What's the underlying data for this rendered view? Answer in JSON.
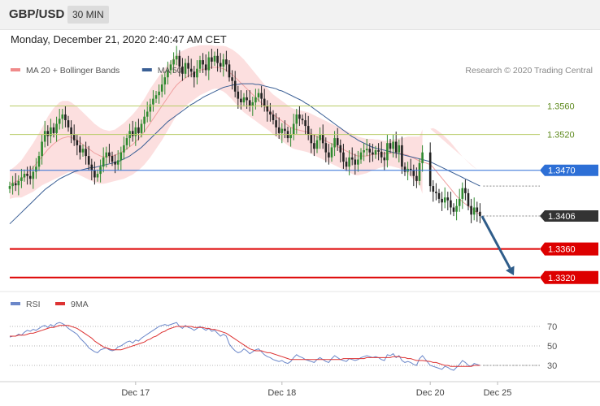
{
  "header": {
    "symbol": "GBP/USD",
    "timeframe": "30 MIN",
    "timestamp": "Monday, December 21, 2020 2:40:47 AM CET"
  },
  "chart_data": [
    {
      "type": "candlestick",
      "legend": [
        {
          "label": "MA 20 + Bollinger Bands",
          "color": "#f08a8a"
        },
        {
          "label": "MA 50",
          "color": "#3a5f95"
        }
      ],
      "credit": "Research © 2020 Trading Central",
      "ylim": [
        1.3305,
        1.364
      ],
      "x_ticks": [
        {
          "label": "Dec 17",
          "index": 43
        },
        {
          "label": "Dec 18",
          "index": 93
        },
        {
          "label": "Dec 20",
          "index": 142
        },
        {
          "label": "Dec 25",
          "index": 165
        }
      ],
      "levels": [
        {
          "value": 1.356,
          "label": "1.3560",
          "style": "resistance"
        },
        {
          "value": 1.352,
          "label": "1.3520",
          "style": "resistance"
        },
        {
          "value": 1.347,
          "label": "1.3470",
          "style": "pivot",
          "color": "#2d6fd6"
        },
        {
          "value": 1.3406,
          "label": "1.3406",
          "style": "last",
          "color": "#333333"
        },
        {
          "value": 1.336,
          "label": "1.3360",
          "style": "support",
          "color": "#dd0000"
        },
        {
          "value": 1.332,
          "label": "1.3320",
          "style": "support",
          "color": "#dd0000"
        }
      ],
      "arrow": {
        "from": [
          158,
          1.3406
        ],
        "to": [
          170,
          1.3323
        ],
        "color": "#2f5d8a"
      },
      "gap_after_index": 141,
      "close": [
        1.3448,
        1.3452,
        1.3449,
        1.3455,
        1.346,
        1.3465,
        1.3462,
        1.3458,
        1.3468,
        1.3475,
        1.349,
        1.351,
        1.3525,
        1.3518,
        1.353,
        1.3522,
        1.3535,
        1.3542,
        1.3548,
        1.354,
        1.353,
        1.352,
        1.3512,
        1.3505,
        1.3495,
        1.35,
        1.349,
        1.3478,
        1.347,
        1.346,
        1.3465,
        1.3475,
        1.3488,
        1.3495,
        1.349,
        1.3482,
        1.3478,
        1.3484,
        1.3495,
        1.3505,
        1.3515,
        1.3525,
        1.3518,
        1.353,
        1.3522,
        1.3535,
        1.3545,
        1.3552,
        1.3562,
        1.357,
        1.3575,
        1.358,
        1.359,
        1.36,
        1.361,
        1.3618,
        1.3625,
        1.363,
        1.3615,
        1.3605,
        1.362,
        1.3612,
        1.3608,
        1.36,
        1.3612,
        1.3624,
        1.3618,
        1.361,
        1.3628,
        1.3622,
        1.363,
        1.362,
        1.3615,
        1.3625,
        1.3618,
        1.36,
        1.3595,
        1.358,
        1.357,
        1.3565,
        1.3572,
        1.3568,
        1.356,
        1.3565,
        1.3572,
        1.3578,
        1.357,
        1.356,
        1.3552,
        1.3548,
        1.354,
        1.353,
        1.3522,
        1.3528,
        1.3525,
        1.3515,
        1.352,
        1.3535,
        1.3548,
        1.3542,
        1.354,
        1.3532,
        1.352,
        1.3508,
        1.35,
        1.3512,
        1.352,
        1.3508,
        1.3495,
        1.3488,
        1.3502,
        1.3515,
        1.3505,
        1.3495,
        1.3482,
        1.3475,
        1.3488,
        1.3485,
        1.3478,
        1.3485,
        1.3495,
        1.3498,
        1.35,
        1.3495,
        1.3492,
        1.3498,
        1.3496,
        1.3488,
        1.3484,
        1.3508,
        1.35,
        1.351,
        1.3495,
        1.3505,
        1.3475,
        1.3468,
        1.3472,
        1.347,
        1.3462,
        1.3455,
        1.348,
        1.3495,
        1.3448,
        1.344,
        1.3438,
        1.343,
        1.3425,
        1.3432,
        1.3428,
        1.3418,
        1.3412,
        1.342,
        1.343,
        1.3445,
        1.3438,
        1.342,
        1.3408,
        1.3418,
        1.3412,
        1.3406
      ],
      "ma20": [
        1.345,
        1.3452,
        1.3454,
        1.3456,
        1.3458,
        1.3462,
        1.3466,
        1.347,
        1.3474,
        1.3479,
        1.3484,
        1.3489,
        1.3494,
        1.3499,
        1.3503,
        1.3507,
        1.351,
        1.3513,
        1.3515,
        1.3516,
        1.3517,
        1.3516,
        1.3514,
        1.3512,
        1.3509,
        1.3506,
        1.3503,
        1.35,
        1.3497,
        1.3494,
        1.3492,
        1.349,
        1.3489,
        1.3489,
        1.3489,
        1.349,
        1.3491,
        1.3493,
        1.3495,
        1.3497,
        1.35,
        1.3503,
        1.3506,
        1.351,
        1.3514,
        1.3519,
        1.3524,
        1.353,
        1.3536,
        1.3542,
        1.3548,
        1.3554,
        1.356,
        1.3566,
        1.3572,
        1.3578,
        1.3584,
        1.3589,
        1.3593,
        1.3596,
        1.3599,
        1.3602,
        1.3604,
        1.3606,
        1.3608,
        1.361,
        1.3611,
        1.3612,
        1.3613,
        1.3614,
        1.3614,
        1.3614,
        1.3613,
        1.3612,
        1.361,
        1.3607,
        1.3604,
        1.36,
        1.3596,
        1.3592,
        1.3588,
        1.3584,
        1.358,
        1.3576,
        1.3572,
        1.3568,
        1.3564,
        1.356,
        1.3556,
        1.3552,
        1.3548,
        1.3545,
        1.3542,
        1.3539,
        1.3536,
        1.3533,
        1.353,
        1.3528,
        1.3527,
        1.3526,
        1.3525,
        1.3524,
        1.3523,
        1.3521,
        1.3519,
        1.3517,
        1.3515,
        1.3513,
        1.3511,
        1.3509,
        1.3507,
        1.3505,
        1.3503,
        1.3501,
        1.3499,
        1.3497,
        1.3495,
        1.3493,
        1.3491,
        1.349,
        1.349,
        1.349,
        1.349,
        1.3491,
        1.3492,
        1.3492,
        1.3493,
        1.3493,
        1.3493,
        1.3494,
        1.3494,
        1.3494,
        1.3494,
        1.3494,
        1.3493,
        1.3492,
        1.3491,
        1.3489,
        1.3487,
        1.3485,
        1.3483,
        1.3482,
        1.3478,
        1.3474,
        1.3469,
        1.3464,
        1.3459,
        1.3454,
        1.3449,
        1.3444,
        1.3439,
        1.3434,
        1.343,
        1.3426,
        1.3423,
        1.342,
        1.3417,
        1.3414,
        1.3411,
        1.3408
      ],
      "ma50": [
        1.3395,
        1.3399,
        1.3403,
        1.3407,
        1.3411,
        1.3415,
        1.3419,
        1.3423,
        1.3427,
        1.3431,
        1.3435,
        1.3439,
        1.3443,
        1.3446,
        1.3449,
        1.3452,
        1.3455,
        1.3458,
        1.346,
        1.3462,
        1.3464,
        1.3466,
        1.3468,
        1.3469,
        1.347,
        1.3471,
        1.3472,
        1.3473,
        1.3474,
        1.3474,
        1.3475,
        1.3476,
        1.3477,
        1.3478,
        1.3479,
        1.348,
        1.3481,
        1.3482,
        1.3484,
        1.3486,
        1.3488,
        1.349,
        1.3493,
        1.3496,
        1.3499,
        1.3502,
        1.3506,
        1.351,
        1.3514,
        1.3518,
        1.3522,
        1.3526,
        1.353,
        1.3534,
        1.3538,
        1.3541,
        1.3544,
        1.3547,
        1.355,
        1.3553,
        1.3556,
        1.3559,
        1.3562,
        1.3564,
        1.3567,
        1.3569,
        1.3572,
        1.3574,
        1.3576,
        1.3578,
        1.358,
        1.3582,
        1.3584,
        1.3586,
        1.3587,
        1.3588,
        1.3589,
        1.359,
        1.359,
        1.3591,
        1.3591,
        1.3591,
        1.3591,
        1.3591,
        1.359,
        1.359,
        1.3589,
        1.3588,
        1.3587,
        1.3586,
        1.3585,
        1.3584,
        1.3582,
        1.3581,
        1.3579,
        1.3577,
        1.3575,
        1.3573,
        1.3571,
        1.3569,
        1.3567,
        1.3564,
        1.3562,
        1.3559,
        1.3556,
        1.3553,
        1.355,
        1.3547,
        1.3544,
        1.3541,
        1.3538,
        1.3535,
        1.3532,
        1.3529,
        1.3526,
        1.3523,
        1.352,
        1.3517,
        1.3515,
        1.3512,
        1.351,
        1.3508,
        1.3506,
        1.3504,
        1.3502,
        1.3501,
        1.35,
        1.3499,
        1.3498,
        1.3497,
        1.3496,
        1.3495,
        1.3494,
        1.3493,
        1.3492,
        1.3491,
        1.349,
        1.3489,
        1.3488,
        1.3487,
        1.3486,
        1.3485,
        1.3482,
        1.348,
        1.3478,
        1.3476,
        1.3474,
        1.3472,
        1.347,
        1.3468,
        1.3466,
        1.3464,
        1.3462,
        1.346,
        1.3458,
        1.3456,
        1.3454,
        1.3452,
        1.345,
        1.3448
      ],
      "bb_width": [
        0.002,
        0.0021,
        0.0022,
        0.0024,
        0.0026,
        0.0028,
        0.003,
        0.0032,
        0.0034,
        0.0036,
        0.0038,
        0.004,
        0.0043,
        0.0046,
        0.0048,
        0.005,
        0.0051,
        0.0052,
        0.0052,
        0.0051,
        0.005,
        0.0049,
        0.0048,
        0.0047,
        0.0046,
        0.0045,
        0.0044,
        0.0043,
        0.0042,
        0.0041,
        0.004,
        0.0039,
        0.0038,
        0.0037,
        0.0036,
        0.0036,
        0.0036,
        0.0037,
        0.0038,
        0.0039,
        0.004,
        0.0041,
        0.0042,
        0.0043,
        0.0044,
        0.0045,
        0.0046,
        0.0047,
        0.0048,
        0.0048,
        0.0048,
        0.0048,
        0.0048,
        0.0047,
        0.0046,
        0.0045,
        0.0044,
        0.0043,
        0.0042,
        0.0041,
        0.004,
        0.0039,
        0.0038,
        0.0037,
        0.0036,
        0.0035,
        0.0034,
        0.0033,
        0.0032,
        0.0031,
        0.003,
        0.003,
        0.0031,
        0.0032,
        0.0033,
        0.0034,
        0.0035,
        0.0036,
        0.0037,
        0.0037,
        0.0037,
        0.0036,
        0.0035,
        0.0034,
        0.0033,
        0.0032,
        0.0031,
        0.003,
        0.0029,
        0.0028,
        0.0028,
        0.0028,
        0.0028,
        0.0028,
        0.0028,
        0.0028,
        0.0028,
        0.0028,
        0.0028,
        0.0028,
        0.0028,
        0.0028,
        0.0028,
        0.0028,
        0.0028,
        0.0028,
        0.0028,
        0.0028,
        0.0028,
        0.0028,
        0.0028,
        0.0028,
        0.0028,
        0.0028,
        0.0028,
        0.0028,
        0.0028,
        0.0028,
        0.0028,
        0.0027,
        0.0026,
        0.0025,
        0.0024,
        0.0023,
        0.0022,
        0.0021,
        0.002,
        0.0019,
        0.0018,
        0.0018,
        0.0018,
        0.0019,
        0.002,
        0.0021,
        0.0022,
        0.0024,
        0.0026,
        0.0028,
        0.003,
        0.0032,
        0.0034,
        0.0045,
        0.005,
        0.0055,
        0.0058,
        0.006,
        0.0062,
        0.0063,
        0.0064,
        0.0065,
        0.0065,
        0.0065,
        0.0064,
        0.0063,
        0.0062,
        0.0061,
        0.006,
        0.006,
        0.006
      ]
    },
    {
      "type": "line",
      "legend": [
        {
          "label": "RSI",
          "color": "#6b87c9"
        },
        {
          "label": "9MA",
          "color": "#dd3333"
        }
      ],
      "ylim": [
        20,
        80
      ],
      "y_ticks": [
        70,
        50,
        30
      ],
      "series": [
        {
          "name": "RSI",
          "values": [
            59,
            60,
            60,
            62,
            61,
            64,
            66,
            65,
            67,
            66,
            68,
            70,
            71,
            69,
            72,
            70,
            73,
            74,
            73,
            71,
            68,
            66,
            64,
            62,
            58,
            55,
            52,
            48,
            46,
            44,
            43,
            46,
            47,
            48,
            46,
            45,
            46,
            49,
            50,
            52,
            54,
            55,
            53,
            56,
            55,
            58,
            60,
            62,
            64,
            66,
            68,
            70,
            71,
            72,
            71,
            72,
            73,
            74,
            70,
            68,
            71,
            69,
            68,
            66,
            68,
            70,
            68,
            66,
            68,
            65,
            66,
            63,
            60,
            62,
            60,
            52,
            48,
            45,
            43,
            44,
            47,
            45,
            42,
            44,
            46,
            47,
            44,
            41,
            39,
            38,
            36,
            35,
            34,
            35,
            33,
            32,
            34,
            38,
            41,
            39,
            38,
            36,
            35,
            34,
            33,
            36,
            38,
            36,
            34,
            33,
            37,
            40,
            38,
            36,
            35,
            34,
            37,
            36,
            35,
            36,
            38,
            39,
            40,
            39,
            38,
            39,
            38,
            36,
            35,
            41,
            40,
            42,
            38,
            40,
            35,
            33,
            34,
            33,
            31,
            30,
            37,
            40,
            30,
            29,
            28,
            27,
            26,
            29,
            28,
            26,
            25,
            28,
            31,
            35,
            33,
            30,
            29,
            32,
            31,
            30
          ]
        },
        {
          "name": "9MA",
          "values": [
            60,
            60,
            60,
            61,
            61,
            61,
            62,
            63,
            63,
            64,
            65,
            66,
            67,
            68,
            69,
            69,
            70,
            71,
            71,
            71,
            71,
            70,
            69,
            68,
            66,
            64,
            62,
            60,
            58,
            55,
            53,
            51,
            49,
            48,
            47,
            46,
            46,
            46,
            46,
            47,
            48,
            49,
            50,
            51,
            52,
            53,
            54,
            56,
            57,
            59,
            60,
            62,
            64,
            65,
            67,
            68,
            69,
            70,
            70,
            70,
            70,
            70,
            70,
            69,
            69,
            69,
            69,
            68,
            68,
            67,
            67,
            66,
            65,
            64,
            63,
            61,
            59,
            57,
            55,
            53,
            51,
            49,
            47,
            46,
            45,
            45,
            45,
            44,
            43,
            43,
            42,
            41,
            40,
            39,
            38,
            37,
            36,
            36,
            36,
            36,
            36,
            36,
            36,
            36,
            36,
            36,
            36,
            36,
            36,
            36,
            36,
            36,
            36,
            36,
            37,
            37,
            37,
            37,
            37,
            37,
            37,
            37,
            38,
            38,
            38,
            38,
            38,
            38,
            38,
            38,
            38,
            39,
            39,
            39,
            38,
            38,
            37,
            37,
            36,
            35,
            35,
            35,
            34,
            33,
            33,
            32,
            31,
            30,
            30,
            29,
            29,
            29,
            29,
            29,
            29,
            29,
            29,
            30,
            30,
            30
          ]
        }
      ],
      "x_ticks": [
        "Dec 17",
        "Dec 18",
        "Dec 20",
        "Dec 25"
      ]
    }
  ]
}
